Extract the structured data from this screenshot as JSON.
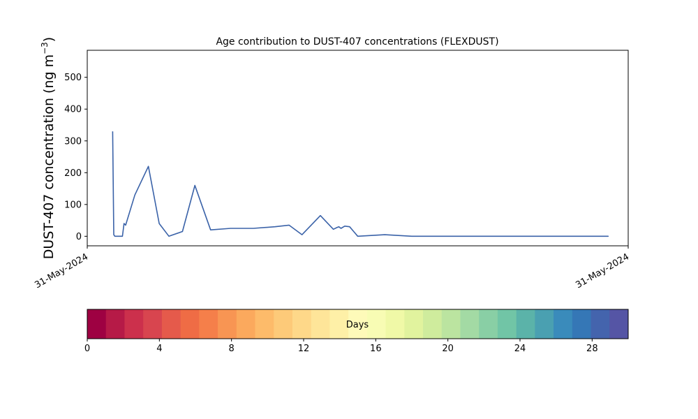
{
  "chart_data": {
    "type": "area",
    "title": "Age contribution to DUST-407 concentrations (FLEXDUST)",
    "ylabel": "DUST-407 concentration (ng m",
    "ylabel_sup": "−3",
    "ylabel_close": ")",
    "ylim": [
      -30,
      585
    ],
    "yticks": [
      0,
      100,
      200,
      300,
      400,
      500
    ],
    "xlim": [
      0,
      1
    ],
    "xticks": [
      {
        "pos": 0,
        "label": "31-May-2024"
      },
      {
        "pos": 1,
        "label": "31-May-2024"
      }
    ],
    "x": [
      0.047,
      0.049,
      0.051,
      0.065,
      0.068,
      0.071,
      0.088,
      0.113,
      0.133,
      0.151,
      0.176,
      0.199,
      0.2,
      0.228,
      0.265,
      0.307,
      0.347,
      0.373,
      0.397,
      0.431,
      0.455,
      0.462,
      0.465,
      0.469,
      0.476,
      0.485,
      0.5,
      0.55,
      0.6,
      0.65,
      0.69,
      0.7,
      0.703,
      0.707,
      0.722,
      0.75,
      0.786,
      0.8,
      0.838,
      0.9,
      0.94,
      0.953,
      0.956,
      0.958,
      0.962,
      0.963,
      0.96,
      0.953
    ],
    "series": [
      {
        "values": [
          330,
          5,
          0,
          0,
          40,
          35,
          130,
          220,
          40,
          0,
          15,
          160,
          155,
          20,
          25,
          25,
          30,
          35,
          5,
          65,
          22,
          28,
          30,
          25,
          32,
          30,
          0,
          5,
          0,
          0,
          0,
          0,
          0,
          0,
          0,
          0,
          0,
          0,
          0,
          0,
          0,
          0,
          0,
          0,
          0,
          0,
          0,
          0
        ]
      }
    ],
    "colorbar": {
      "label": "Days",
      "min": 0,
      "max": 30,
      "ticks": [
        0,
        4,
        8,
        12,
        16,
        20,
        24,
        28
      ],
      "colors": [
        "#9e0142",
        "#b61a47",
        "#cc304c",
        "#d8454f",
        "#e55a4b",
        "#ef6c45",
        "#f57f4a",
        "#f89553",
        "#fba95d",
        "#fdbb6a",
        "#fdca79",
        "#fed889",
        "#fee599",
        "#fef0a7",
        "#fefab9",
        "#f8fcb4",
        "#f0f9a7",
        "#e1f39e",
        "#cfec9d",
        "#bbe4a0",
        "#a3daa4",
        "#89cfa5",
        "#71c5a6",
        "#5bb3a9",
        "#4aa0b1",
        "#3a8bbb",
        "#3577b6",
        "#4464ad",
        "#5555a5"
      ]
    }
  }
}
